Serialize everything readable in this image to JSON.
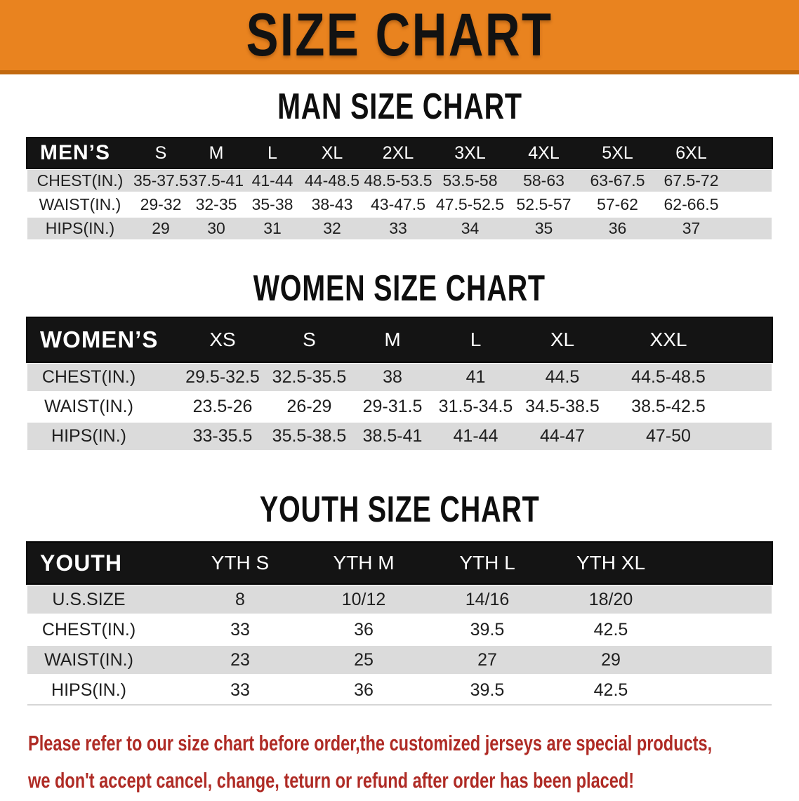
{
  "banner": {
    "title": "SIZE CHART"
  },
  "headings": {
    "men": "MAN SIZE CHART",
    "women": "WOMEN SIZE CHART",
    "youth": "YOUTH SIZE CHART"
  },
  "men": {
    "label": "MEN’S",
    "sizes": [
      "S",
      "M",
      "L",
      "XL",
      "2XL",
      "3XL",
      "4XL",
      "5XL",
      "6XL"
    ],
    "chest": {
      "label": "CHEST(IN.)",
      "values": [
        "35-37.5",
        "37.5-41",
        "41-44",
        "44-48.5",
        "48.5-53.5",
        "53.5-58",
        "58-63",
        "63-67.5",
        "67.5-72"
      ]
    },
    "waist": {
      "label": "WAIST(IN.)",
      "values": [
        "29-32",
        "32-35",
        "35-38",
        "38-43",
        "43-47.5",
        "47.5-52.5",
        "52.5-57",
        "57-62",
        "62-66.5"
      ]
    },
    "hips": {
      "label": "HIPS(IN.)",
      "values": [
        "29",
        "30",
        "31",
        "32",
        "33",
        "34",
        "35",
        "36",
        "37"
      ]
    }
  },
  "women": {
    "label": "WOMEN’S",
    "sizes": [
      "XS",
      "S",
      "M",
      "L",
      "XL",
      "XXL"
    ],
    "chest": {
      "label": "CHEST(IN.)",
      "values": [
        "29.5-32.5",
        "32.5-35.5",
        "38",
        "41",
        "44.5",
        "44.5-48.5"
      ]
    },
    "waist": {
      "label": "WAIST(IN.)",
      "values": [
        "23.5-26",
        "26-29",
        "29-31.5",
        "31.5-34.5",
        "34.5-38.5",
        "38.5-42.5"
      ]
    },
    "hips": {
      "label": "HIPS(IN.)",
      "values": [
        "33-35.5",
        "35.5-38.5",
        "38.5-41",
        "41-44",
        "44-47",
        "47-50"
      ]
    }
  },
  "youth": {
    "label": "YOUTH",
    "sizes": [
      "YTH S",
      "YTH M",
      "YTH L",
      "YTH XL"
    ],
    "ussize": {
      "label": "U.S.SIZE",
      "values": [
        "8",
        "10/12",
        "14/16",
        "18/20"
      ]
    },
    "chest": {
      "label": "CHEST(IN.)",
      "values": [
        "33",
        "36",
        "39.5",
        "42.5"
      ]
    },
    "waist": {
      "label": "WAIST(IN.)",
      "values": [
        "23",
        "25",
        "27",
        "29"
      ]
    },
    "hips": {
      "label": "HIPS(IN.)",
      "values": [
        "33",
        "36",
        "39.5",
        "42.5"
      ]
    }
  },
  "footer": {
    "line1": "Please refer to our size chart before order,the customized jerseys are special products,",
    "line2": "we don't accept cancel, change, teturn or refund after order has been placed!"
  },
  "colors": {
    "banner_orange": "#E9831F",
    "banner_edge": "#C2690F",
    "table_black": "#141414",
    "row_gray": "#DBDBDB",
    "footer_red": "#AF2B25"
  }
}
